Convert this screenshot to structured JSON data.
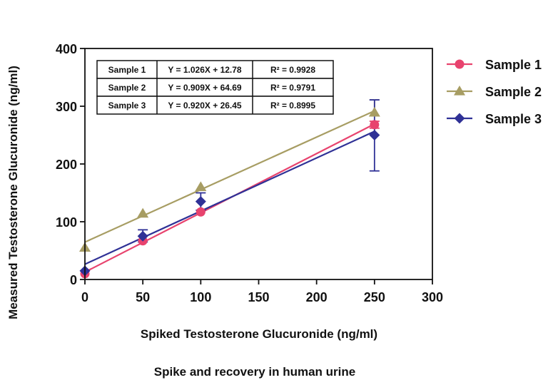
{
  "chart_data": {
    "type": "scatter",
    "caption": "Spike and recovery in human urine",
    "xlabel": "Spiked Testosterone Glucuronide (ng/ml)",
    "ylabel": "Measured Testosterone Glucuronide (ng/ml)",
    "xlim": [
      0,
      300
    ],
    "ylim": [
      0,
      400
    ],
    "x_ticks": [
      0,
      50,
      100,
      150,
      200,
      250,
      300
    ],
    "y_ticks": [
      0,
      100,
      200,
      300,
      400
    ],
    "legend_position": "right",
    "x": [
      0,
      50,
      100,
      250
    ],
    "series": [
      {
        "name": "Sample 1",
        "marker": "circle",
        "color": "#e8436e",
        "values": [
          10,
          67,
          117,
          268
        ],
        "error_low": [
          null,
          null,
          null,
          262
        ],
        "error_high": [
          null,
          null,
          null,
          274
        ],
        "fit": {
          "slope": 1.026,
          "intercept": 12.78
        },
        "equation": "Y = 1.026X + 12.78",
        "r2": "R² = 0.9928"
      },
      {
        "name": "Sample 2",
        "marker": "triangle",
        "color": "#a79d63",
        "values": [
          55,
          114,
          160,
          289
        ],
        "error_low": [
          null,
          null,
          null,
          null
        ],
        "error_high": [
          null,
          null,
          null,
          311
        ],
        "fit": {
          "slope": 0.909,
          "intercept": 64.69
        },
        "equation": "Y = 0.909X + 64.69",
        "r2": "R² = 0.9791"
      },
      {
        "name": "Sample 3",
        "marker": "diamond",
        "color": "#2f3196",
        "values": [
          15,
          75,
          135,
          250
        ],
        "error_low": [
          null,
          65,
          120,
          188
        ],
        "error_high": [
          null,
          86,
          150,
          311
        ],
        "fit": {
          "slope": 0.92,
          "intercept": 26.45
        },
        "equation": "Y = 0.920X + 26.45",
        "r2": "R² = 0.8995"
      }
    ]
  }
}
